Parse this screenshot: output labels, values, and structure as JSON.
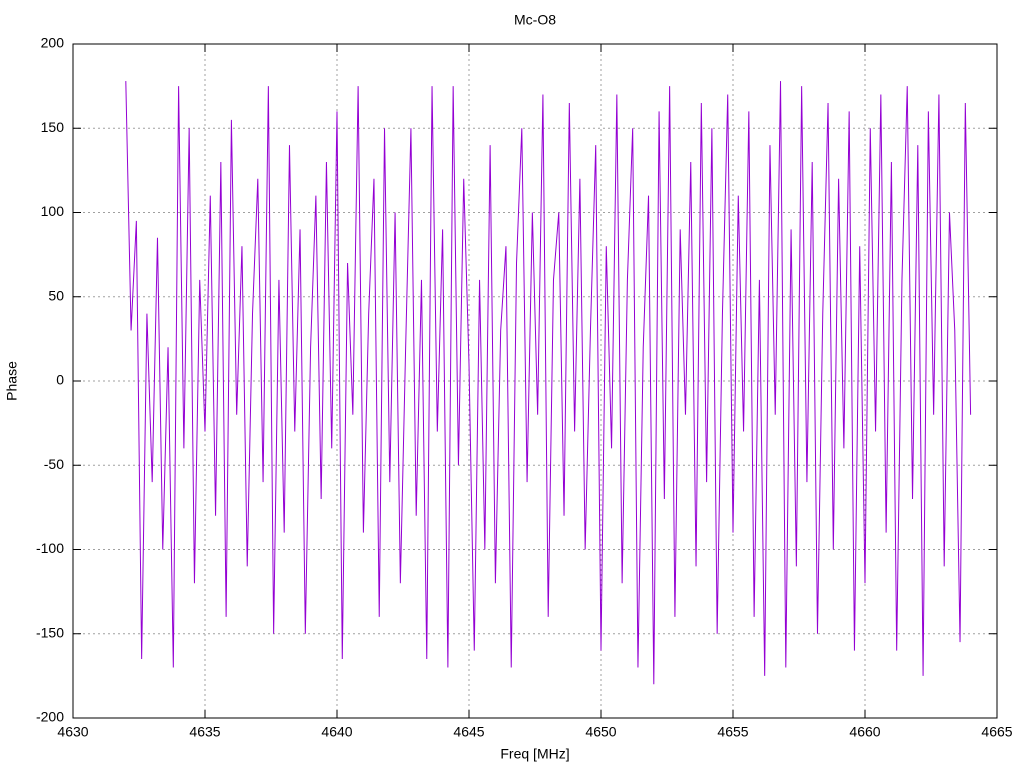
{
  "chart_data": {
    "type": "line",
    "title": "Mc-O8",
    "x_label": "Freq [MHz]",
    "y_label": "Phase",
    "xlim": [
      4630,
      4665
    ],
    "xticks": [
      4630,
      4635,
      4640,
      4645,
      4650,
      4655,
      4660,
      4665
    ],
    "ylim": [
      -200,
      200
    ],
    "yticks": [
      -200,
      -150,
      -100,
      -50,
      0,
      50,
      100,
      150,
      200
    ],
    "grid": true,
    "x": [
      4632,
      4632.2,
      4632.4,
      4632.6,
      4632.8,
      4633,
      4633.2,
      4633.4,
      4633.6,
      4633.8,
      4634,
      4634.2,
      4634.4,
      4634.6,
      4634.8,
      4635,
      4635.2,
      4635.4,
      4635.6,
      4635.8,
      4636,
      4636.2,
      4636.4,
      4636.6,
      4636.8,
      4637,
      4637.2,
      4637.4,
      4637.6,
      4637.8,
      4638,
      4638.2,
      4638.4,
      4638.6,
      4638.8,
      4639,
      4639.2,
      4639.4,
      4639.6,
      4639.8,
      4640,
      4640.2,
      4640.4,
      4640.6,
      4640.8,
      4641,
      4641.2,
      4641.4,
      4641.6,
      4641.8,
      4642,
      4642.2,
      4642.4,
      4642.6,
      4642.8,
      4643,
      4643.2,
      4643.4,
      4643.6,
      4643.8,
      4644,
      4644.2,
      4644.4,
      4644.6,
      4644.8,
      4645,
      4645.2,
      4645.4,
      4645.6,
      4645.8,
      4646,
      4646.2,
      4646.4,
      4646.6,
      4646.8,
      4647,
      4647.2,
      4647.4,
      4647.6,
      4647.8,
      4648,
      4648.2,
      4648.4,
      4648.6,
      4648.8,
      4649,
      4649.2,
      4649.4,
      4649.6,
      4649.8,
      4650,
      4650.2,
      4650.4,
      4650.6,
      4650.8,
      4651,
      4651.2,
      4651.4,
      4651.6,
      4651.8,
      4652,
      4652.2,
      4652.4,
      4652.6,
      4652.8,
      4653,
      4653.2,
      4653.4,
      4653.6,
      4653.8,
      4654,
      4654.2,
      4654.4,
      4654.6,
      4654.8,
      4655,
      4655.2,
      4655.4,
      4655.6,
      4655.8,
      4656,
      4656.2,
      4656.4,
      4656.6,
      4656.8,
      4657,
      4657.2,
      4657.4,
      4657.6,
      4657.8,
      4658,
      4658.2,
      4658.4,
      4658.6,
      4658.8,
      4659,
      4659.2,
      4659.4,
      4659.6,
      4659.8,
      4660,
      4660.2,
      4660.4,
      4660.6,
      4660.8,
      4661,
      4661.2,
      4661.4,
      4661.6,
      4661.8,
      4662,
      4662.2,
      4662.4,
      4662.6,
      4662.8,
      4663,
      4663.2,
      4663.4,
      4663.6,
      4663.8,
      4664
    ],
    "series": [
      {
        "name": "Mc-O8",
        "color": "#9400d3",
        "values": [
          178,
          30,
          95,
          -165,
          40,
          -60,
          85,
          -100,
          20,
          -170,
          175,
          -40,
          150,
          -120,
          60,
          -30,
          110,
          -80,
          130,
          -140,
          155,
          -20,
          80,
          -110,
          40,
          120,
          -60,
          175,
          -150,
          60,
          -90,
          140,
          -30,
          90,
          -150,
          20,
          110,
          -70,
          130,
          -40,
          160,
          -165,
          70,
          -20,
          175,
          -90,
          40,
          120,
          -140,
          150,
          -60,
          100,
          -120,
          20,
          150,
          -80,
          60,
          -165,
          175,
          -30,
          90,
          -170,
          175,
          -50,
          120,
          10,
          -160,
          60,
          -100,
          140,
          -120,
          30,
          80,
          -170,
          70,
          150,
          -60,
          100,
          -20,
          170,
          -140,
          60,
          100,
          -80,
          165,
          -30,
          120,
          -100,
          30,
          140,
          -160,
          80,
          -40,
          170,
          -120,
          60,
          150,
          -170,
          20,
          110,
          -180,
          160,
          -70,
          175,
          -140,
          90,
          -20,
          130,
          -110,
          165,
          -60,
          150,
          -150,
          40,
          170,
          -90,
          110,
          -30,
          160,
          -140,
          60,
          -175,
          140,
          -20,
          178,
          -170,
          90,
          -110,
          175,
          -60,
          130,
          -150,
          40,
          165,
          -100,
          120,
          -40,
          160,
          -160,
          80,
          -120,
          150,
          -30,
          170,
          -90,
          130,
          -160,
          60,
          175,
          -70,
          140,
          -175,
          160,
          -20,
          170,
          -110,
          100,
          30,
          -155,
          165,
          -20
        ]
      }
    ]
  }
}
